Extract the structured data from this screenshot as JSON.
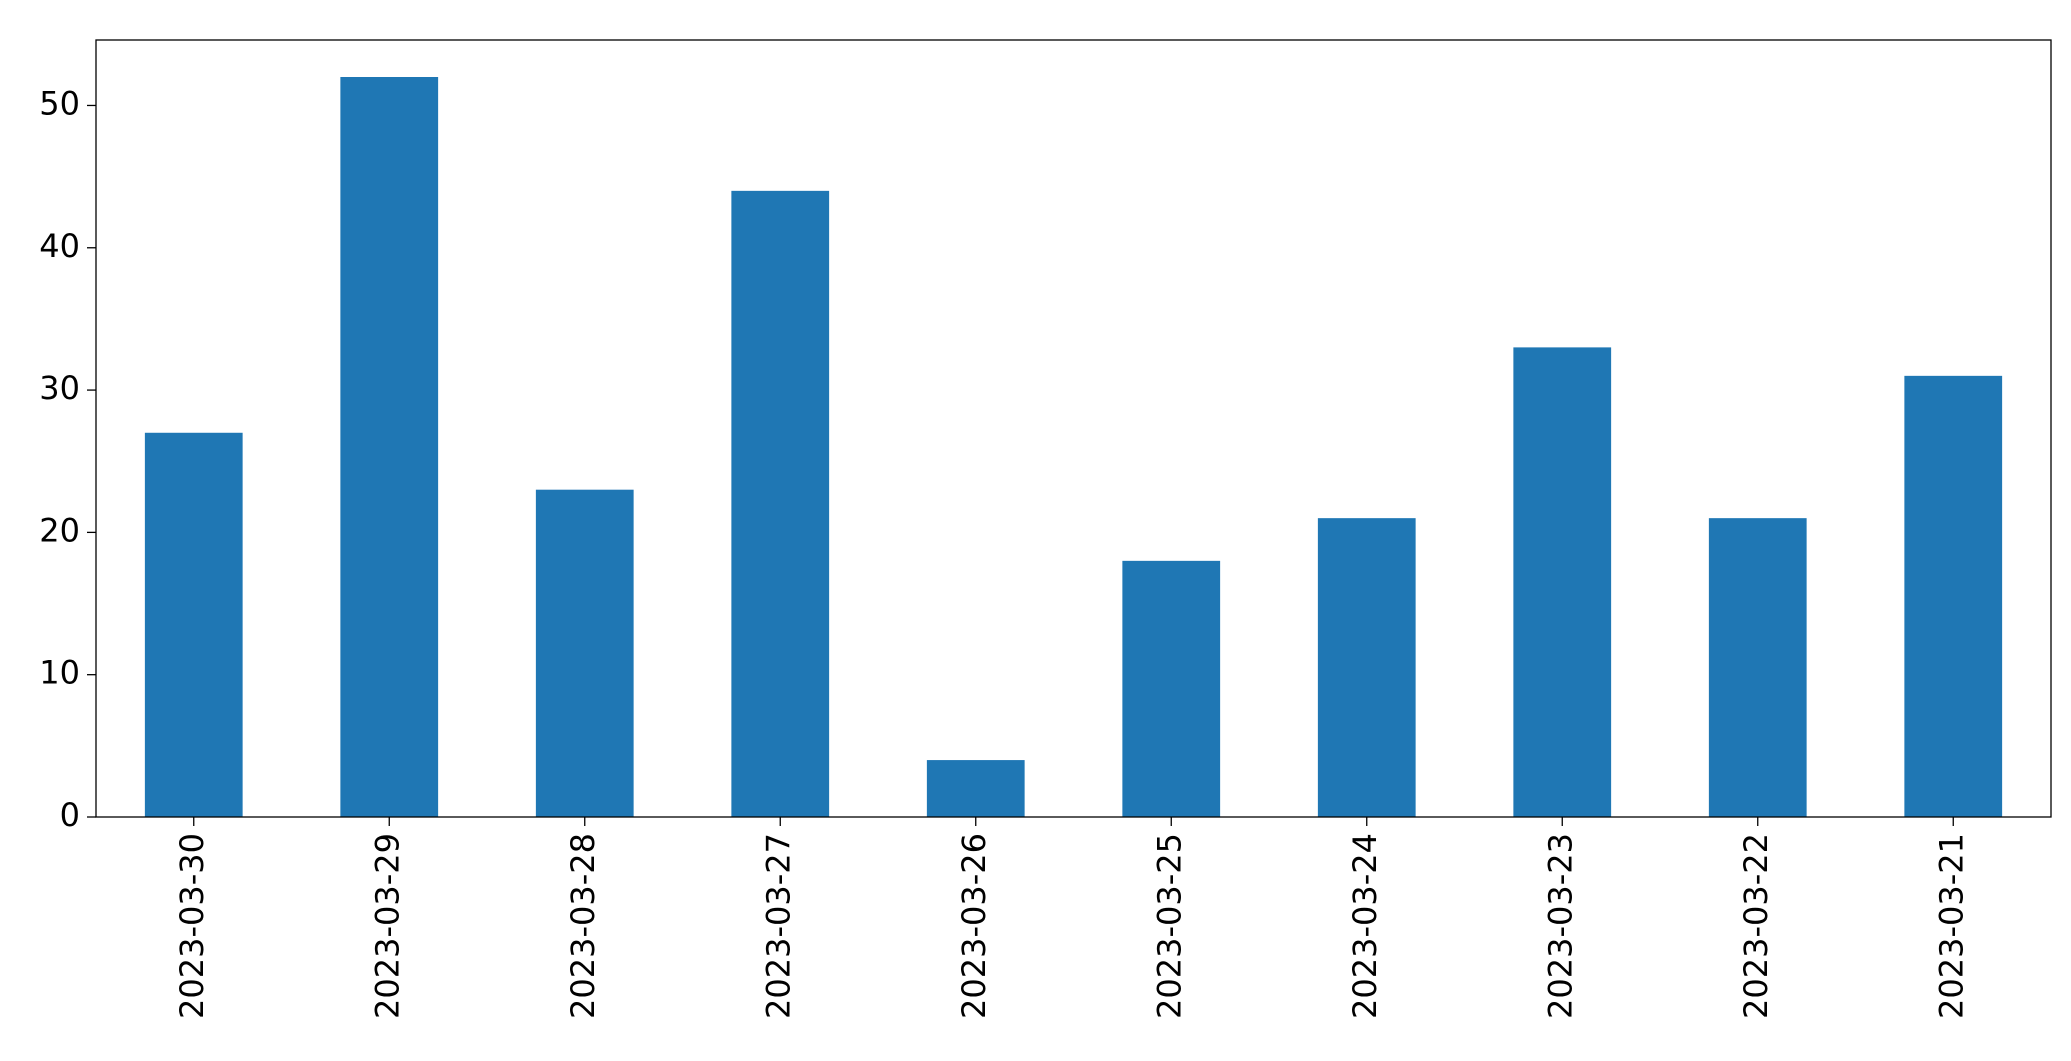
{
  "chart_data": {
    "type": "bar",
    "categories": [
      "2023-03-30",
      "2023-03-29",
      "2023-03-28",
      "2023-03-27",
      "2023-03-26",
      "2023-03-25",
      "2023-03-24",
      "2023-03-23",
      "2023-03-22",
      "2023-03-21"
    ],
    "values": [
      27,
      52,
      23,
      44,
      4,
      18,
      21,
      33,
      21,
      31
    ],
    "color": "#1f77b4",
    "ylim": [
      0,
      54.6
    ],
    "yticks": [
      0,
      10,
      20,
      30,
      40,
      50
    ],
    "grid": false
  }
}
